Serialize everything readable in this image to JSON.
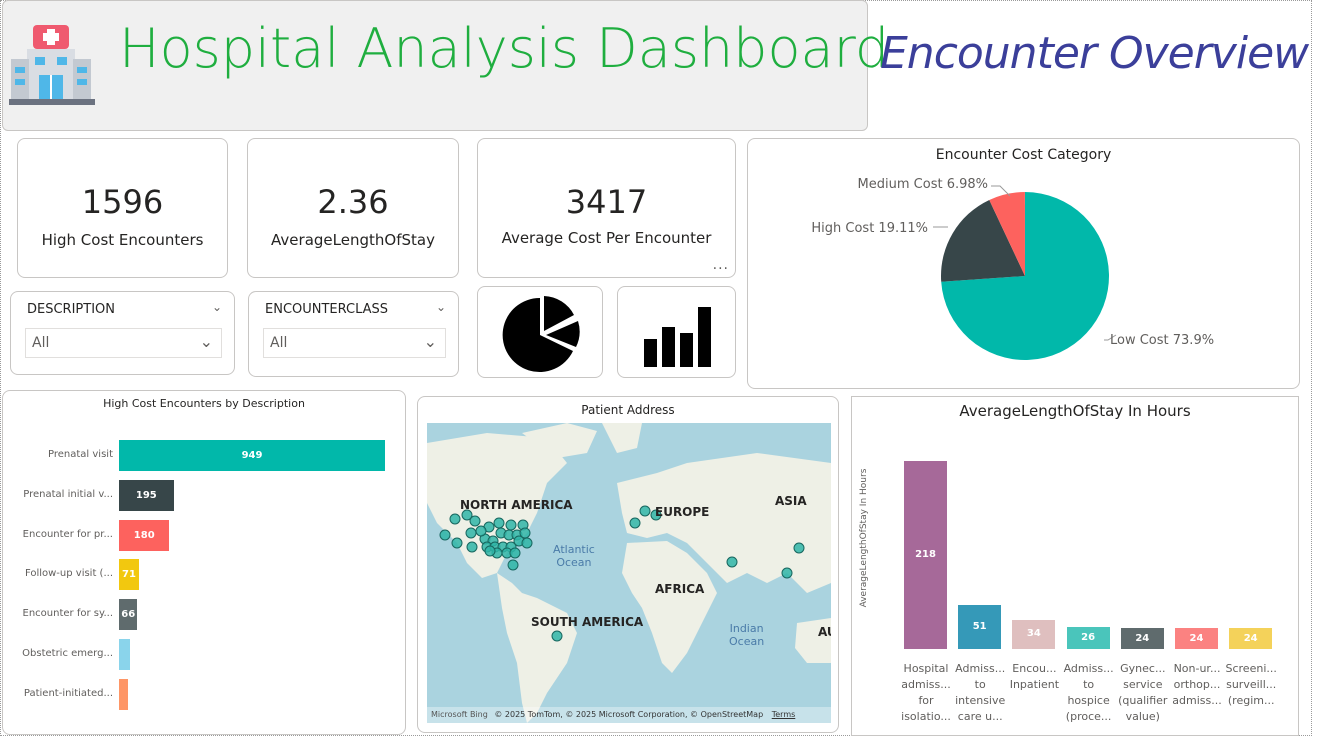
{
  "header": {
    "title": "Hospital Analysis Dashboard",
    "page_name": "Encounter Overview",
    "logo_icon": "hospital-icon"
  },
  "kpis": [
    {
      "value": "1596",
      "label": "High Cost Encounters"
    },
    {
      "value": "2.36",
      "label": "AverageLengthOfStay"
    },
    {
      "value": "3417",
      "label": "Average Cost Per Encounter"
    }
  ],
  "more_options": "...",
  "slicers": [
    {
      "title": "DESCRIPTION",
      "value": "All"
    },
    {
      "title": "ENCOUNTERCLASS",
      "value": "All"
    }
  ],
  "nav_buttons": [
    {
      "icon": "pie-chart-icon"
    },
    {
      "icon": "bar-chart-icon"
    }
  ],
  "pie": {
    "title": "Encounter Cost Category",
    "slices": [
      {
        "label": "Low Cost 73.9%",
        "value": 73.9,
        "color": "#01b8aa"
      },
      {
        "label": "High Cost 19.11%",
        "value": 19.11,
        "color": "#374649"
      },
      {
        "label": "Medium Cost 6.98%",
        "value": 6.98,
        "color": "#fd625e"
      }
    ]
  },
  "high_cost_by_desc": {
    "title": "High Cost Encounters by Description",
    "rows": [
      {
        "label": "Prenatal visit",
        "value": 949,
        "value_label": "949",
        "color": "#01b8aa"
      },
      {
        "label": "Prenatal initial v...",
        "value": 195,
        "value_label": "195",
        "color": "#374649"
      },
      {
        "label": "Encounter for pr...",
        "value": 180,
        "value_label": "180",
        "color": "#fd625e"
      },
      {
        "label": "Follow-up visit (...",
        "value": 71,
        "value_label": "71",
        "color": "#f2c80f"
      },
      {
        "label": "Encounter for sy...",
        "value": 66,
        "value_label": "66",
        "color": "#5f6b6d"
      },
      {
        "label": "Obstetric emerg...",
        "value": 41,
        "value_label": "",
        "color": "#8ad4eb"
      },
      {
        "label": "Patient-initiated...",
        "value": 18,
        "value_label": "",
        "color": "#fe9666"
      }
    ]
  },
  "map": {
    "title": "Patient Address",
    "continents": [
      "NORTH AMERICA",
      "EUROPE",
      "ASIA",
      "AFRICA",
      "SOUTH AMERICA",
      "AU"
    ],
    "oceans": [
      "Atlantic\nOcean",
      "Indian\nOcean"
    ],
    "brand": "Microsoft Bing",
    "attribution": "© 2025 TomTom, © 2025 Microsoft Corporation, © OpenStreetMap",
    "terms": "Terms"
  },
  "avg_los": {
    "title": "AverageLengthOfStay In Hours",
    "ylabel": "AverageLengthOfStay In Hours",
    "bars": [
      {
        "label": "Hospital\nadmiss...\nfor\nisolatio...",
        "value": 218,
        "value_label": "218",
        "color": "#a66999"
      },
      {
        "label": "Admiss...\nto\nintensive\ncare u...",
        "value": 51,
        "value_label": "51",
        "color": "#3599b8"
      },
      {
        "label": "Encou...\nInpatient",
        "value": 34,
        "value_label": "34",
        "color": "#dfbfbf"
      },
      {
        "label": "Admiss...\nto\nhospice\n(proce...",
        "value": 26,
        "value_label": "26",
        "color": "#4ac5bb"
      },
      {
        "label": "Gynec...\nservice\n(qualifier\nvalue)",
        "value": 24,
        "value_label": "24",
        "color": "#5f6b6d"
      },
      {
        "label": "Non-ur...\northop...\nadmiss...",
        "value": 24,
        "value_label": "24",
        "color": "#fb8281"
      },
      {
        "label": "Screeni...\nsurveill...\n(regim...",
        "value": 24,
        "value_label": "24",
        "color": "#f4d25a"
      }
    ]
  }
}
